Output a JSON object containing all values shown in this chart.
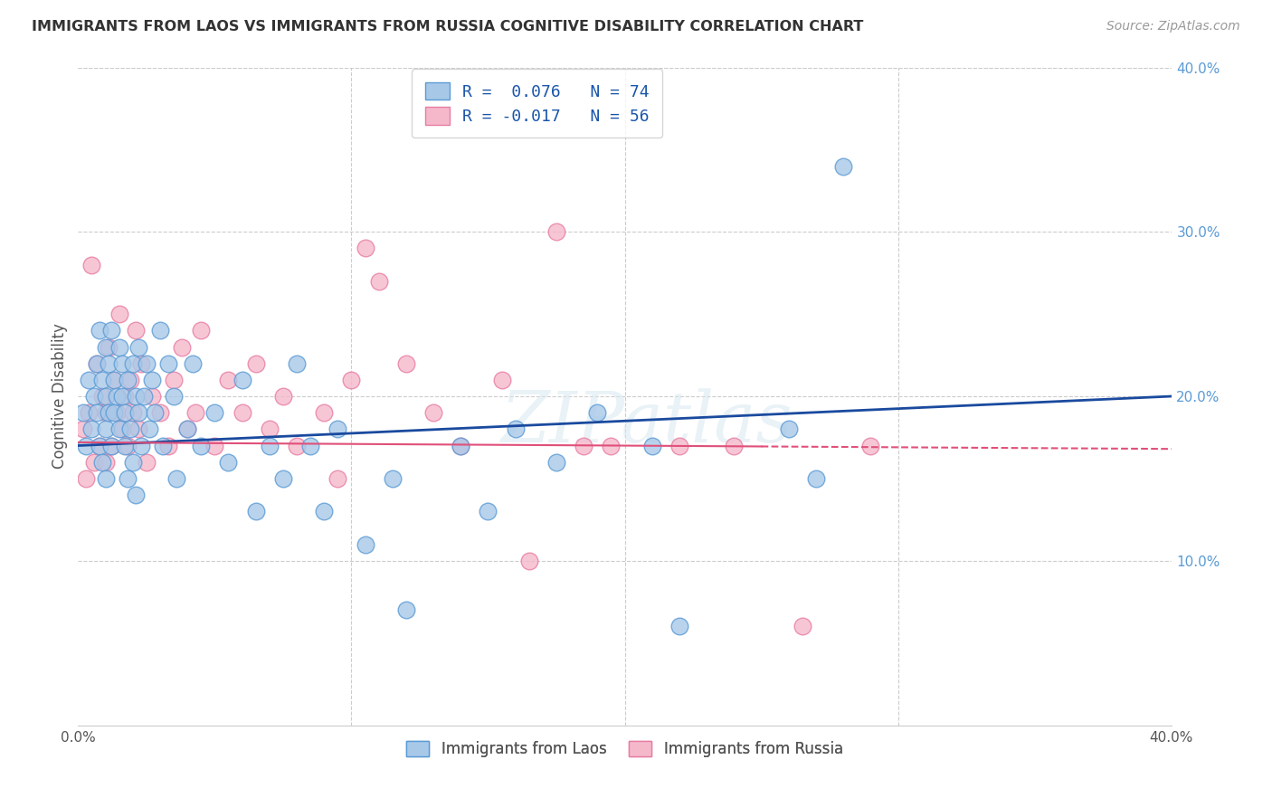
{
  "title": "IMMIGRANTS FROM LAOS VS IMMIGRANTS FROM RUSSIA COGNITIVE DISABILITY CORRELATION CHART",
  "source": "Source: ZipAtlas.com",
  "ylabel": "Cognitive Disability",
  "xlim": [
    0.0,
    0.4
  ],
  "ylim": [
    0.0,
    0.4
  ],
  "laos_color": "#a8c8e8",
  "russia_color": "#f5b8cb",
  "laos_edge_color": "#5b9bd5",
  "russia_edge_color": "#e87da3",
  "trend_laos_color": "#1a4a9e",
  "trend_russia_color": "#e0507a",
  "R_laos": 0.076,
  "N_laos": 74,
  "R_russia": -0.017,
  "N_russia": 56,
  "watermark": "ZIPatlas",
  "laos_x": [
    0.002,
    0.003,
    0.004,
    0.005,
    0.006,
    0.007,
    0.007,
    0.008,
    0.008,
    0.009,
    0.009,
    0.01,
    0.01,
    0.01,
    0.01,
    0.011,
    0.011,
    0.012,
    0.012,
    0.013,
    0.013,
    0.014,
    0.015,
    0.015,
    0.016,
    0.016,
    0.017,
    0.017,
    0.018,
    0.018,
    0.019,
    0.02,
    0.02,
    0.021,
    0.021,
    0.022,
    0.022,
    0.023,
    0.024,
    0.025,
    0.026,
    0.027,
    0.028,
    0.03,
    0.031,
    0.033,
    0.035,
    0.036,
    0.04,
    0.042,
    0.045,
    0.05,
    0.055,
    0.06,
    0.065,
    0.07,
    0.075,
    0.08,
    0.085,
    0.09,
    0.095,
    0.105,
    0.115,
    0.12,
    0.14,
    0.15,
    0.16,
    0.175,
    0.19,
    0.21,
    0.22,
    0.26,
    0.27,
    0.28
  ],
  "laos_y": [
    0.19,
    0.17,
    0.21,
    0.18,
    0.2,
    0.22,
    0.19,
    0.24,
    0.17,
    0.21,
    0.16,
    0.23,
    0.2,
    0.18,
    0.15,
    0.22,
    0.19,
    0.24,
    0.17,
    0.21,
    0.19,
    0.2,
    0.23,
    0.18,
    0.22,
    0.2,
    0.19,
    0.17,
    0.21,
    0.15,
    0.18,
    0.22,
    0.16,
    0.2,
    0.14,
    0.19,
    0.23,
    0.17,
    0.2,
    0.22,
    0.18,
    0.21,
    0.19,
    0.24,
    0.17,
    0.22,
    0.2,
    0.15,
    0.18,
    0.22,
    0.17,
    0.19,
    0.16,
    0.21,
    0.13,
    0.17,
    0.15,
    0.22,
    0.17,
    0.13,
    0.18,
    0.11,
    0.15,
    0.07,
    0.17,
    0.13,
    0.18,
    0.16,
    0.19,
    0.17,
    0.06,
    0.18,
    0.15,
    0.34
  ],
  "russia_x": [
    0.002,
    0.003,
    0.004,
    0.005,
    0.006,
    0.007,
    0.008,
    0.009,
    0.01,
    0.01,
    0.011,
    0.012,
    0.013,
    0.014,
    0.015,
    0.016,
    0.017,
    0.018,
    0.019,
    0.02,
    0.021,
    0.022,
    0.023,
    0.025,
    0.027,
    0.03,
    0.033,
    0.035,
    0.038,
    0.04,
    0.043,
    0.045,
    0.05,
    0.055,
    0.06,
    0.065,
    0.07,
    0.075,
    0.08,
    0.09,
    0.095,
    0.1,
    0.105,
    0.11,
    0.12,
    0.13,
    0.14,
    0.155,
    0.165,
    0.175,
    0.185,
    0.195,
    0.22,
    0.24,
    0.265,
    0.29
  ],
  "russia_y": [
    0.18,
    0.15,
    0.19,
    0.28,
    0.16,
    0.22,
    0.17,
    0.2,
    0.19,
    0.16,
    0.23,
    0.17,
    0.21,
    0.19,
    0.25,
    0.18,
    0.2,
    0.17,
    0.21,
    0.19,
    0.24,
    0.18,
    0.22,
    0.16,
    0.2,
    0.19,
    0.17,
    0.21,
    0.23,
    0.18,
    0.19,
    0.24,
    0.17,
    0.21,
    0.19,
    0.22,
    0.18,
    0.2,
    0.17,
    0.19,
    0.15,
    0.21,
    0.29,
    0.27,
    0.22,
    0.19,
    0.17,
    0.21,
    0.1,
    0.3,
    0.17,
    0.17,
    0.17,
    0.17,
    0.06,
    0.17
  ]
}
